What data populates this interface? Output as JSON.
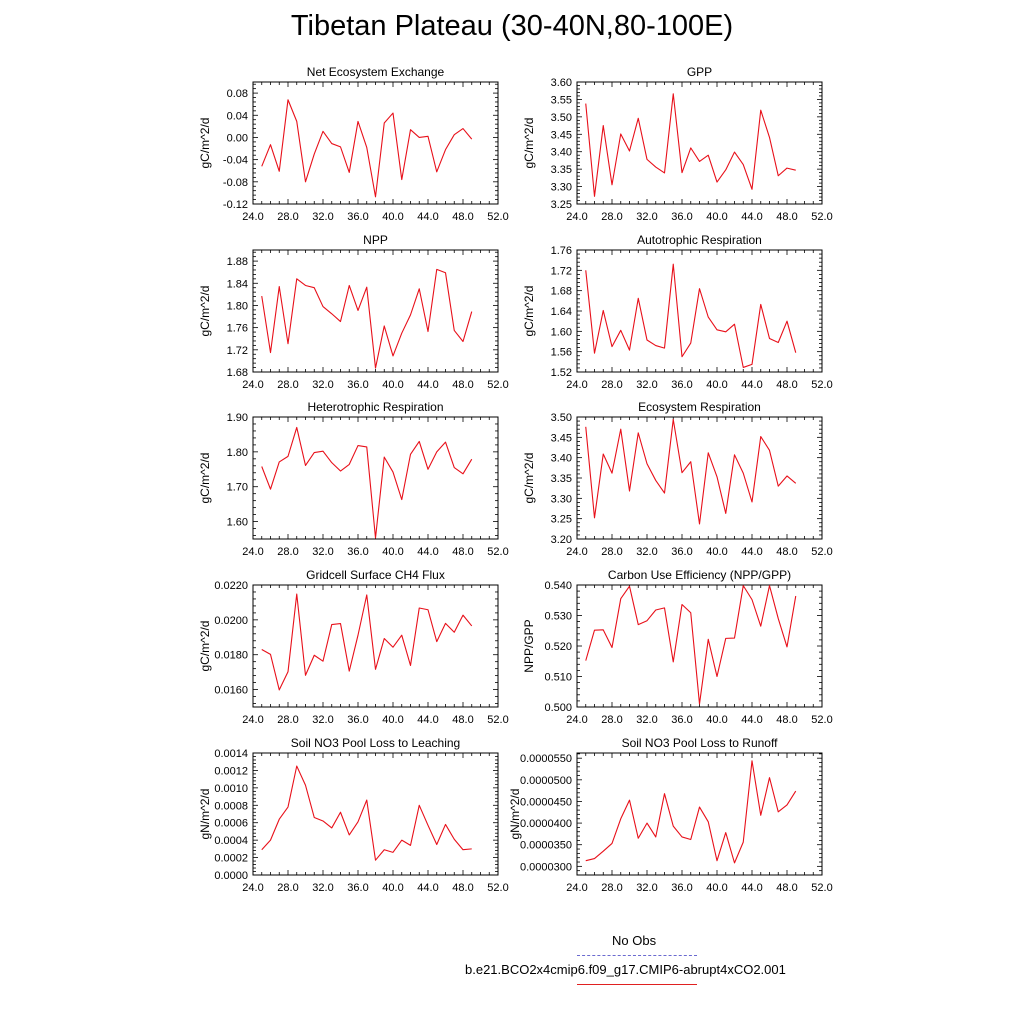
{
  "title": "Tibetan Plateau (30-40N,80-100E)",
  "legend": {
    "items": [
      {
        "label": "No Obs",
        "color": "#6a6ad0",
        "style": "dashed"
      },
      {
        "label": "b.e21.BCO2x4cmip6.f09_g17.CMIP6-abrupt4xCO2.001",
        "color": "#e02020",
        "style": "solid"
      }
    ]
  },
  "colors": {
    "series": "#e8101a",
    "axis": "#000000"
  },
  "chart_data": [
    {
      "type": "line",
      "title": "Net Ecosystem Exchange",
      "ylabel": "gC/m^2/d",
      "xlim": [
        24,
        52
      ],
      "ylim": [
        -0.12,
        0.1
      ],
      "xticks": [
        24,
        28,
        32,
        36,
        40,
        44,
        48,
        52
      ],
      "xtick_labels": [
        "24.0",
        "28.0",
        "32.0",
        "36.0",
        "40.0",
        "44.0",
        "48.0",
        "52.0"
      ],
      "yticks": [
        -0.12,
        -0.08,
        -0.04,
        0.0,
        0.04,
        0.08
      ],
      "ytick_labels": [
        "-0.12",
        "-0.08",
        "-0.04",
        "0.00",
        "0.04",
        "0.08"
      ],
      "x": [
        25,
        26,
        27,
        28,
        29,
        30,
        31,
        32,
        33,
        34,
        35,
        36,
        37,
        38,
        39,
        40,
        41,
        42,
        43,
        44,
        45,
        46,
        47,
        48,
        49
      ],
      "series": [
        {
          "values": [
            -0.052,
            -0.013,
            -0.061,
            0.068,
            0.029,
            -0.08,
            -0.03,
            0.011,
            -0.011,
            -0.017,
            -0.063,
            0.029,
            -0.018,
            -0.107,
            0.026,
            0.044,
            -0.076,
            0.014,
            0.0,
            0.002,
            -0.062,
            -0.022,
            0.005,
            0.016,
            -0.003
          ]
        }
      ]
    },
    {
      "type": "line",
      "title": "GPP",
      "ylabel": "gC/m^2/d",
      "xlim": [
        24,
        52
      ],
      "ylim": [
        3.25,
        3.6
      ],
      "xticks": [
        24,
        28,
        32,
        36,
        40,
        44,
        48,
        52
      ],
      "xtick_labels": [
        "24.0",
        "28.0",
        "32.0",
        "36.0",
        "40.0",
        "44.0",
        "48.0",
        "52.0"
      ],
      "yticks": [
        3.25,
        3.3,
        3.35,
        3.4,
        3.45,
        3.5,
        3.55,
        3.6
      ],
      "ytick_labels": [
        "3.25",
        "3.30",
        "3.35",
        "3.40",
        "3.45",
        "3.50",
        "3.55",
        "3.60"
      ],
      "x": [
        25,
        26,
        27,
        28,
        29,
        30,
        31,
        32,
        33,
        34,
        35,
        36,
        37,
        38,
        39,
        40,
        41,
        42,
        43,
        44,
        45,
        46,
        47,
        48,
        49
      ],
      "series": [
        {
          "values": [
            3.538,
            3.272,
            3.475,
            3.305,
            3.451,
            3.402,
            3.496,
            3.378,
            3.356,
            3.339,
            3.566,
            3.34,
            3.411,
            3.372,
            3.39,
            3.313,
            3.348,
            3.399,
            3.363,
            3.292,
            3.519,
            3.441,
            3.331,
            3.353,
            3.347
          ]
        }
      ]
    },
    {
      "type": "line",
      "title": "NPP",
      "ylabel": "gC/m^2/d",
      "xlim": [
        24,
        52
      ],
      "ylim": [
        1.68,
        1.9
      ],
      "xticks": [
        24,
        28,
        32,
        36,
        40,
        44,
        48,
        52
      ],
      "xtick_labels": [
        "24.0",
        "28.0",
        "32.0",
        "36.0",
        "40.0",
        "44.0",
        "48.0",
        "52.0"
      ],
      "yticks": [
        1.68,
        1.72,
        1.76,
        1.8,
        1.84,
        1.88
      ],
      "ytick_labels": [
        "1.68",
        "1.72",
        "1.76",
        "1.80",
        "1.84",
        "1.88"
      ],
      "x": [
        25,
        26,
        27,
        28,
        29,
        30,
        31,
        32,
        33,
        34,
        35,
        36,
        37,
        38,
        39,
        40,
        41,
        42,
        43,
        44,
        45,
        46,
        47,
        48,
        49
      ],
      "series": [
        {
          "values": [
            1.817,
            1.715,
            1.834,
            1.731,
            1.848,
            1.836,
            1.832,
            1.798,
            1.785,
            1.771,
            1.836,
            1.791,
            1.833,
            1.687,
            1.763,
            1.709,
            1.75,
            1.783,
            1.83,
            1.753,
            1.865,
            1.859,
            1.755,
            1.735,
            1.789
          ]
        }
      ]
    },
    {
      "type": "line",
      "title": "Autotrophic Respiration",
      "ylabel": "gC/m^2/d",
      "xlim": [
        24,
        52
      ],
      "ylim": [
        1.52,
        1.76
      ],
      "xticks": [
        24,
        28,
        32,
        36,
        40,
        44,
        48,
        52
      ],
      "xtick_labels": [
        "24.0",
        "28.0",
        "32.0",
        "36.0",
        "40.0",
        "44.0",
        "48.0",
        "52.0"
      ],
      "yticks": [
        1.52,
        1.56,
        1.6,
        1.64,
        1.68,
        1.72,
        1.76
      ],
      "ytick_labels": [
        "1.52",
        "1.56",
        "1.60",
        "1.64",
        "1.68",
        "1.72",
        "1.76"
      ],
      "x": [
        25,
        26,
        27,
        28,
        29,
        30,
        31,
        32,
        33,
        34,
        35,
        36,
        37,
        38,
        39,
        40,
        41,
        42,
        43,
        44,
        45,
        46,
        47,
        48,
        49
      ],
      "series": [
        {
          "values": [
            1.72,
            1.557,
            1.641,
            1.57,
            1.602,
            1.563,
            1.665,
            1.583,
            1.572,
            1.567,
            1.732,
            1.55,
            1.577,
            1.684,
            1.628,
            1.603,
            1.599,
            1.614,
            1.529,
            1.535,
            1.653,
            1.586,
            1.578,
            1.62,
            1.558
          ]
        }
      ]
    },
    {
      "type": "line",
      "title": "Heterotrophic Respiration",
      "ylabel": "gC/m^2/d",
      "xlim": [
        24,
        52
      ],
      "ylim": [
        1.55,
        1.9
      ],
      "xticks": [
        24,
        28,
        32,
        36,
        40,
        44,
        48,
        52
      ],
      "xtick_labels": [
        "24.0",
        "28.0",
        "32.0",
        "36.0",
        "40.0",
        "44.0",
        "48.0",
        "52.0"
      ],
      "yticks": [
        1.6,
        1.7,
        1.8,
        1.9
      ],
      "ytick_labels": [
        "1.60",
        "1.70",
        "1.80",
        "1.90"
      ],
      "x": [
        25,
        26,
        27,
        28,
        29,
        30,
        31,
        32,
        33,
        34,
        35,
        36,
        37,
        38,
        39,
        40,
        41,
        42,
        43,
        44,
        45,
        46,
        47,
        48,
        49
      ],
      "series": [
        {
          "values": [
            1.758,
            1.693,
            1.771,
            1.787,
            1.87,
            1.761,
            1.798,
            1.802,
            1.769,
            1.745,
            1.764,
            1.818,
            1.814,
            1.553,
            1.785,
            1.742,
            1.663,
            1.793,
            1.83,
            1.75,
            1.8,
            1.828,
            1.755,
            1.737,
            1.779
          ]
        }
      ]
    },
    {
      "type": "line",
      "title": "Ecosystem Respiration",
      "ylabel": "gC/m^2/d",
      "xlim": [
        24,
        52
      ],
      "ylim": [
        3.2,
        3.5
      ],
      "xticks": [
        24,
        28,
        32,
        36,
        40,
        44,
        48,
        52
      ],
      "xtick_labels": [
        "24.0",
        "28.0",
        "32.0",
        "36.0",
        "40.0",
        "44.0",
        "48.0",
        "52.0"
      ],
      "yticks": [
        3.2,
        3.25,
        3.3,
        3.35,
        3.4,
        3.45,
        3.5
      ],
      "ytick_labels": [
        "3.20",
        "3.25",
        "3.30",
        "3.35",
        "3.40",
        "3.45",
        "3.50"
      ],
      "x": [
        25,
        26,
        27,
        28,
        29,
        30,
        31,
        32,
        33,
        34,
        35,
        36,
        37,
        38,
        39,
        40,
        41,
        42,
        43,
        44,
        45,
        46,
        47,
        48,
        49
      ],
      "series": [
        {
          "values": [
            3.476,
            3.252,
            3.409,
            3.362,
            3.47,
            3.318,
            3.461,
            3.385,
            3.344,
            3.313,
            3.494,
            3.363,
            3.39,
            3.237,
            3.412,
            3.353,
            3.263,
            3.407,
            3.362,
            3.291,
            3.452,
            3.418,
            3.33,
            3.355,
            3.337
          ]
        }
      ]
    },
    {
      "type": "line",
      "title": "Gridcell Surface CH4 Flux",
      "ylabel": "gC/m^2/d",
      "xlim": [
        24,
        52
      ],
      "ylim": [
        0.015,
        0.022
      ],
      "xticks": [
        24,
        28,
        32,
        36,
        40,
        44,
        48,
        52
      ],
      "xtick_labels": [
        "24.0",
        "28.0",
        "32.0",
        "36.0",
        "40.0",
        "44.0",
        "48.0",
        "52.0"
      ],
      "yticks": [
        0.016,
        0.018,
        0.02,
        0.022
      ],
      "ytick_labels": [
        "0.0160",
        "0.0180",
        "0.0200",
        "0.0220"
      ],
      "x": [
        25,
        26,
        27,
        28,
        29,
        30,
        31,
        32,
        33,
        34,
        35,
        36,
        37,
        38,
        39,
        40,
        41,
        42,
        43,
        44,
        45,
        46,
        47,
        48,
        49
      ],
      "series": [
        {
          "values": [
            0.0183,
            0.01802,
            0.01598,
            0.01702,
            0.02148,
            0.01682,
            0.01797,
            0.01763,
            0.01973,
            0.01979,
            0.01706,
            0.01912,
            0.02143,
            0.01716,
            0.01893,
            0.01843,
            0.01912,
            0.01738,
            0.02068,
            0.02058,
            0.01875,
            0.0198,
            0.01929,
            0.02027,
            0.01965
          ]
        }
      ]
    },
    {
      "type": "line",
      "title": "Carbon Use Efficiency (NPP/GPP)",
      "ylabel": "NPP/GPP",
      "xlim": [
        24,
        52
      ],
      "ylim": [
        0.5,
        0.54
      ],
      "xticks": [
        24,
        28,
        32,
        36,
        40,
        44,
        48,
        52
      ],
      "xtick_labels": [
        "24.0",
        "28.0",
        "32.0",
        "36.0",
        "40.0",
        "44.0",
        "48.0",
        "52.0"
      ],
      "yticks": [
        0.5,
        0.51,
        0.52,
        0.53,
        0.54
      ],
      "ytick_labels": [
        "0.500",
        "0.510",
        "0.520",
        "0.530",
        "0.540"
      ],
      "x": [
        25,
        26,
        27,
        28,
        29,
        30,
        31,
        32,
        33,
        34,
        35,
        36,
        37,
        38,
        39,
        40,
        41,
        42,
        43,
        44,
        45,
        46,
        47,
        48,
        49
      ],
      "series": [
        {
          "values": [
            0.5152,
            0.5252,
            0.5253,
            0.5195,
            0.5355,
            0.5396,
            0.527,
            0.5283,
            0.5318,
            0.5325,
            0.5148,
            0.5336,
            0.5309,
            0.501,
            0.5222,
            0.51,
            0.5225,
            0.5226,
            0.5398,
            0.5352,
            0.5265,
            0.5398,
            0.529,
            0.5197,
            0.5364
          ]
        }
      ]
    },
    {
      "type": "line",
      "title": "Soil NO3 Pool Loss to Leaching",
      "ylabel": "gN/m^2/d",
      "xlim": [
        24,
        52
      ],
      "ylim": [
        0,
        0.0014
      ],
      "xticks": [
        24,
        28,
        32,
        36,
        40,
        44,
        48,
        52
      ],
      "xtick_labels": [
        "24.0",
        "28.0",
        "32.0",
        "36.0",
        "40.0",
        "44.0",
        "48.0",
        "52.0"
      ],
      "yticks": [
        0,
        0.0002,
        0.0004,
        0.0006,
        0.0008,
        0.001,
        0.0012,
        0.0014
      ],
      "ytick_labels": [
        "0.0000",
        "0.0002",
        "0.0004",
        "0.0006",
        "0.0008",
        "0.0010",
        "0.0012",
        "0.0014"
      ],
      "x": [
        25,
        26,
        27,
        28,
        29,
        30,
        31,
        32,
        33,
        34,
        35,
        36,
        37,
        38,
        39,
        40,
        41,
        42,
        43,
        44,
        45,
        46,
        47,
        48,
        49
      ],
      "series": [
        {
          "values": [
            0.00029,
            0.0004,
            0.00064,
            0.00078,
            0.00125,
            0.00103,
            0.00066,
            0.00062,
            0.00054,
            0.00072,
            0.00046,
            0.00061,
            0.00086,
            0.00017,
            0.00029,
            0.00026,
            0.0004,
            0.00034,
            0.0008,
            0.00057,
            0.00035,
            0.00058,
            0.00041,
            0.00029,
            0.0003
          ]
        }
      ]
    },
    {
      "type": "line",
      "title": "Soil NO3 Pool Loss to Runoff",
      "ylabel": "gN/m^2/d",
      "xlim": [
        24,
        52
      ],
      "ylim": [
        2.8e-05,
        5.62e-05
      ],
      "xticks": [
        24,
        28,
        32,
        36,
        40,
        44,
        48,
        52
      ],
      "xtick_labels": [
        "24.0",
        "28.0",
        "32.0",
        "36.0",
        "40.0",
        "44.0",
        "48.0",
        "52.0"
      ],
      "yticks": [
        3e-05,
        3.5e-05,
        4e-05,
        4.5e-05,
        5e-05,
        5.5e-05
      ],
      "ytick_labels": [
        "0.0000300",
        "0.0000350",
        "0.0000400",
        "0.0000450",
        "0.0000500",
        "0.0000550"
      ],
      "x": [
        25,
        26,
        27,
        28,
        29,
        30,
        31,
        32,
        33,
        34,
        35,
        36,
        37,
        38,
        39,
        40,
        41,
        42,
        43,
        44,
        45,
        46,
        47,
        48,
        49
      ],
      "series": [
        {
          "values": [
            3.13e-05,
            3.18e-05,
            3.35e-05,
            3.53e-05,
            4.1e-05,
            4.53e-05,
            3.65e-05,
            4e-05,
            3.68e-05,
            4.68e-05,
            3.93e-05,
            3.68e-05,
            3.62e-05,
            4.37e-05,
            4.03e-05,
            3.13e-05,
            3.78e-05,
            3.08e-05,
            3.56e-05,
            5.44e-05,
            4.18e-05,
            5.05e-05,
            4.26e-05,
            4.42e-05,
            4.74e-05
          ]
        }
      ]
    }
  ]
}
